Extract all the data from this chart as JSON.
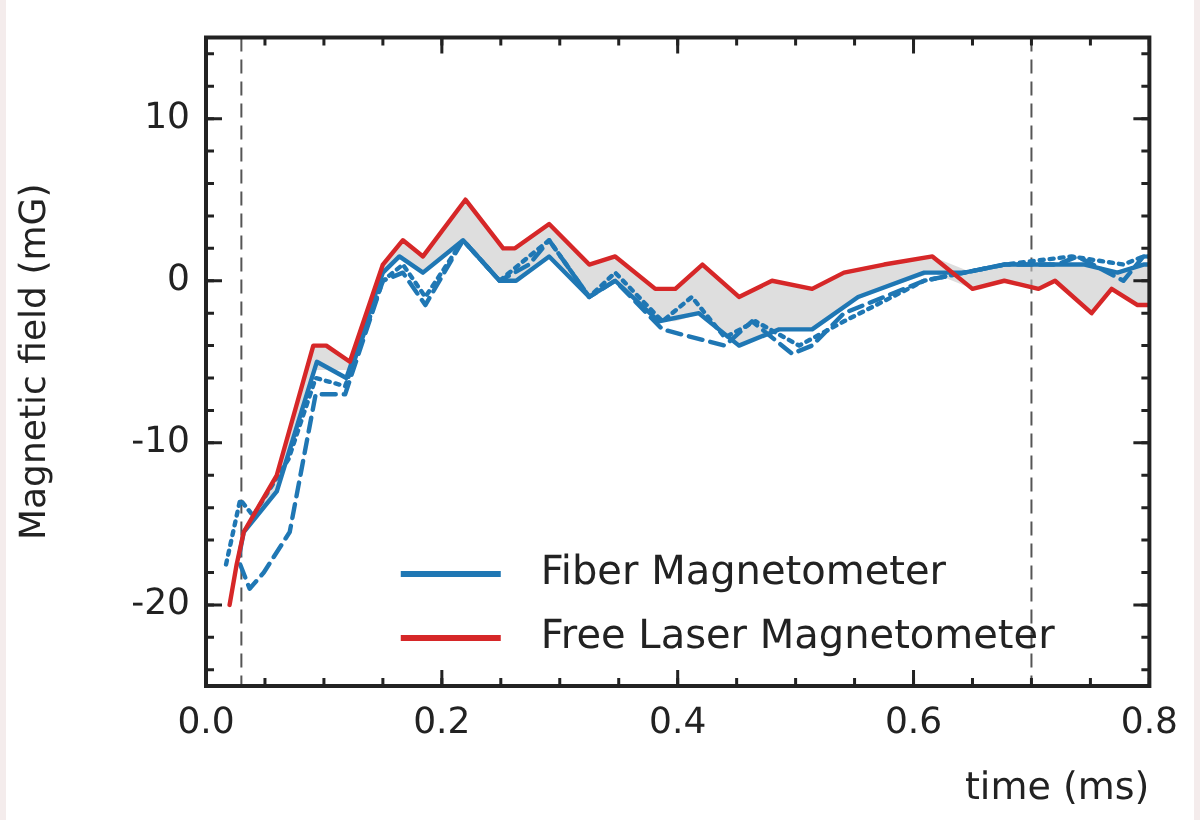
{
  "chart_data": {
    "type": "line",
    "xlabel": "time (ms)",
    "ylabel": "Magnetic field (mG)",
    "xlim": [
      0,
      0.8
    ],
    "ylim": [
      -25,
      15
    ],
    "xticks": [
      {
        "value": 0,
        "label": "0.0"
      },
      {
        "value": 0.2,
        "label": "0.2"
      },
      {
        "value": 0.4,
        "label": "0.4"
      },
      {
        "value": 0.6,
        "label": "0.6"
      },
      {
        "value": 0.8,
        "label": "0.8"
      }
    ],
    "yticks": [
      -20,
      -10,
      0,
      10
    ],
    "grid": false,
    "legend": "bottom",
    "ref_lines": [
      {
        "axis": "x",
        "value": 0.03,
        "color": "#555555",
        "line_style": "dashed"
      },
      {
        "axis": "x",
        "value": 0.7,
        "color": "#555555",
        "line_style": "dashed"
      }
    ],
    "series": [
      {
        "name": "Free Laser Magnetometer",
        "color": "#d62728",
        "line_style": "solid",
        "x": [
          0.02,
          0.026,
          0.032,
          0.06,
          0.091,
          0.102,
          0.122,
          0.15,
          0.167,
          0.184,
          0.22,
          0.252,
          0.262,
          0.291,
          0.325,
          0.347,
          0.381,
          0.398,
          0.421,
          0.452,
          0.48,
          0.514,
          0.541,
          0.575,
          0.616,
          0.65,
          0.677,
          0.706,
          0.72,
          0.751,
          0.768,
          0.79,
          0.8
        ],
        "values": [
          -20,
          -17.5,
          -15.5,
          -12,
          -4,
          -4,
          -5,
          1,
          2.5,
          1.5,
          5,
          2,
          2,
          3.5,
          1,
          1.5,
          -0.5,
          -0.5,
          1,
          -1,
          0,
          -0.5,
          0.5,
          1,
          1.5,
          -0.5,
          0,
          -0.5,
          0,
          -2,
          -0.5,
          -1.5,
          -1.5
        ],
        "lower": [
          -20,
          -18,
          -15.5,
          -13,
          -5.5,
          -5.5,
          -5.5,
          0.5,
          1.5,
          0.5,
          2.5,
          0,
          0,
          1.5,
          -1,
          0,
          -2.5,
          -2.5,
          -2,
          -4,
          -3,
          -3,
          -1.5,
          -0.5,
          0.5,
          -0.5,
          0,
          -0.5,
          0,
          -2,
          -0.5,
          -1.5,
          -1.5
        ],
        "upper": [
          -20,
          -17.5,
          -15.5,
          -12,
          -4,
          -4,
          -5,
          1,
          2.5,
          1.5,
          5,
          2,
          2,
          3.5,
          1,
          1.5,
          -0.5,
          -0.5,
          1,
          -1,
          0,
          -0.5,
          0.5,
          1,
          1.5,
          0.5,
          1,
          1,
          1,
          1,
          0.5,
          1,
          1
        ]
      },
      {
        "name": "Fiber Magnetometer",
        "color": "#1f77b4",
        "line_style": "solid",
        "x": [
          0.028,
          0.032,
          0.06,
          0.094,
          0.119,
          0.15,
          0.164,
          0.184,
          0.218,
          0.249,
          0.263,
          0.291,
          0.325,
          0.347,
          0.384,
          0.418,
          0.452,
          0.486,
          0.514,
          0.553,
          0.609,
          0.643,
          0.677,
          0.722,
          0.745,
          0.773,
          0.795,
          0.8
        ],
        "values": [
          -17,
          -15.5,
          -13,
          -5,
          -6,
          0.5,
          1.5,
          0.5,
          2.5,
          0,
          0,
          1.5,
          -1,
          0,
          -2.5,
          -2,
          -4,
          -3,
          -3,
          -1,
          0.5,
          0.5,
          1,
          1,
          1,
          0.5,
          1,
          1
        ]
      },
      {
        "color": "#1f77b4",
        "line_style": "dashed",
        "x": [
          0.029,
          0.037,
          0.049,
          0.071,
          0.093,
          0.118,
          0.15,
          0.167,
          0.186,
          0.218,
          0.249,
          0.274,
          0.291,
          0.325,
          0.347,
          0.387,
          0.44,
          0.463,
          0.497,
          0.514,
          0.541,
          0.609,
          0.677,
          0.722,
          0.739,
          0.778,
          0.795,
          0.8
        ],
        "values": [
          -17.5,
          -19,
          -18,
          -15.5,
          -7,
          -7,
          0,
          0.5,
          -1.5,
          2.5,
          0,
          1,
          2.5,
          -1,
          0,
          -3,
          -4,
          -2.5,
          -4.5,
          -4,
          -2,
          0,
          1,
          1,
          1.5,
          0,
          1.5,
          1.5
        ]
      },
      {
        "color": "#1f77b4",
        "line_style": "dotted",
        "x": [
          0.017,
          0.029,
          0.04,
          0.07,
          0.093,
          0.118,
          0.15,
          0.167,
          0.186,
          0.218,
          0.249,
          0.274,
          0.291,
          0.325,
          0.347,
          0.387,
          0.412,
          0.44,
          0.466,
          0.503,
          0.541,
          0.609,
          0.677,
          0.734,
          0.778,
          0.795,
          0.8
        ],
        "values": [
          -17.5,
          -13.5,
          -14.5,
          -11,
          -6,
          -6.5,
          0,
          1,
          -1,
          2.5,
          0,
          1.5,
          2.5,
          -1,
          0.5,
          -2.5,
          -1,
          -3.5,
          -2.5,
          -4,
          -2.5,
          0,
          1,
          1.5,
          1,
          1.5,
          1.5
        ]
      }
    ]
  }
}
